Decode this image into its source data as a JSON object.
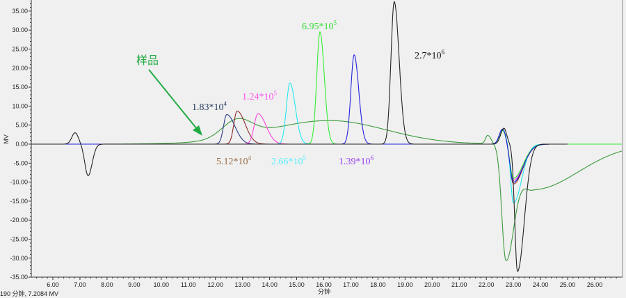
{
  "chart_data": {
    "type": "line",
    "title": "",
    "xlabel": "分钟",
    "ylabel": "MV",
    "xlim": [
      5.2,
      27.0
    ],
    "ylim": [
      -35,
      37
    ],
    "x_ticks": [
      "6.00",
      "7.00",
      "8.00",
      "9.00",
      "10.00",
      "11.00",
      "12.00",
      "13.00",
      "14.00",
      "15.00",
      "16.00",
      "17.00",
      "18.00",
      "19.00",
      "20.00",
      "21.00",
      "22.00",
      "23.00",
      "24.00",
      "25.00",
      "26.00"
    ],
    "y_ticks": [
      "35.00",
      "30.00",
      "25.00",
      "20.00",
      "15.00",
      "10.00",
      "5.00",
      "0.00",
      "-5.00",
      "-10.00",
      "-15.00",
      "-20.00",
      "-25.00",
      "-30.00",
      "-35.00"
    ],
    "grid": false,
    "peak_format": "[retention_min, height_mv, sigma_left, sigma_right]",
    "series": [
      {
        "name": "sample",
        "color": "#3a9a3a",
        "range": [
          5.2,
          27.0
        ],
        "peaks": [
          [
            12.8,
            4.6,
            0.55,
            0.55
          ],
          [
            16.2,
            6.2,
            2.3,
            2.1
          ],
          [
            22.05,
            2.2,
            0.08,
            0.12
          ],
          [
            22.72,
            -29.5,
            0.15,
            0.3
          ],
          [
            23.7,
            -12,
            0.45,
            1.7
          ]
        ]
      },
      {
        "name": "1.83*10^4",
        "color": "#2a3a8a",
        "range": [
          5.2,
          25.0
        ],
        "peaks": [
          [
            12.42,
            7.8,
            0.12,
            0.3
          ],
          [
            22.6,
            4,
            0.12,
            0.12
          ],
          [
            23.0,
            -10,
            0.12,
            0.35
          ]
        ]
      },
      {
        "name": "5.12*10^4",
        "color": "#8b2a2a",
        "range": [
          5.2,
          25.0
        ],
        "peaks": [
          [
            12.8,
            8.7,
            0.12,
            0.3
          ],
          [
            22.6,
            4,
            0.12,
            0.12
          ],
          [
            23.0,
            -10.5,
            0.12,
            0.35
          ]
        ]
      },
      {
        "name": "1.24*10^5",
        "color": "#ff44dd",
        "range": [
          5.2,
          25.0
        ],
        "peaks": [
          [
            13.57,
            8.0,
            0.14,
            0.3
          ],
          [
            22.6,
            4,
            0.12,
            0.12
          ],
          [
            23.0,
            -9.5,
            0.12,
            0.35
          ]
        ]
      },
      {
        "name": "2.66*10^5",
        "color": "#22e8f0",
        "range": [
          5.2,
          25.0
        ],
        "peaks": [
          [
            14.75,
            16.1,
            0.13,
            0.2
          ],
          [
            22.6,
            3.8,
            0.12,
            0.12
          ],
          [
            23.0,
            -15.5,
            0.1,
            0.3
          ]
        ]
      },
      {
        "name": "6.95*10^5",
        "color": "#33ee33",
        "range": [
          5.2,
          27.0
        ],
        "peaks": [
          [
            15.86,
            29.5,
            0.12,
            0.16
          ],
          [
            22.6,
            3.6,
            0.12,
            0.12
          ],
          [
            23.0,
            -9,
            0.12,
            0.35
          ]
        ]
      },
      {
        "name": "1.39*10^6",
        "color": "#2222dd",
        "range": [
          5.2,
          25.0
        ],
        "peaks": [
          [
            17.12,
            23.5,
            0.12,
            0.17
          ],
          [
            22.6,
            4,
            0.12,
            0.12
          ],
          [
            23.0,
            -10,
            0.12,
            0.35
          ]
        ]
      },
      {
        "name": "2.7*10^6",
        "color": "#222222",
        "range": [
          5.2,
          25.0
        ],
        "peaks": [
          [
            6.82,
            3.0,
            0.12,
            0.12
          ],
          [
            7.3,
            -8.3,
            0.12,
            0.15
          ],
          [
            18.6,
            37.5,
            0.12,
            0.18
          ],
          [
            22.65,
            4.2,
            0.12,
            0.1
          ],
          [
            23.15,
            -33.5,
            0.1,
            0.25
          ]
        ]
      }
    ],
    "annotations": [
      {
        "base": "样品",
        "sup": "",
        "color": "#22aa44"
      },
      {
        "base": "1.83*10",
        "sup": "4",
        "color": "#2a4060"
      },
      {
        "base": "1.24*10",
        "sup": "5",
        "color": "#ff55ee"
      },
      {
        "base": "6.95*10",
        "sup": "5",
        "color": "#33dd33"
      },
      {
        "base": "2.7*10",
        "sup": "6",
        "color": "#111111"
      },
      {
        "base": "5.12*10",
        "sup": "4",
        "color": "#9a6a40"
      },
      {
        "base": "2.66*10",
        "sup": "5",
        "color": "#55eeff"
      },
      {
        "base": "1.39*10",
        "sup": "6",
        "color": "#9944ee"
      }
    ]
  },
  "status": "190 分钟, 7.2084 MV"
}
